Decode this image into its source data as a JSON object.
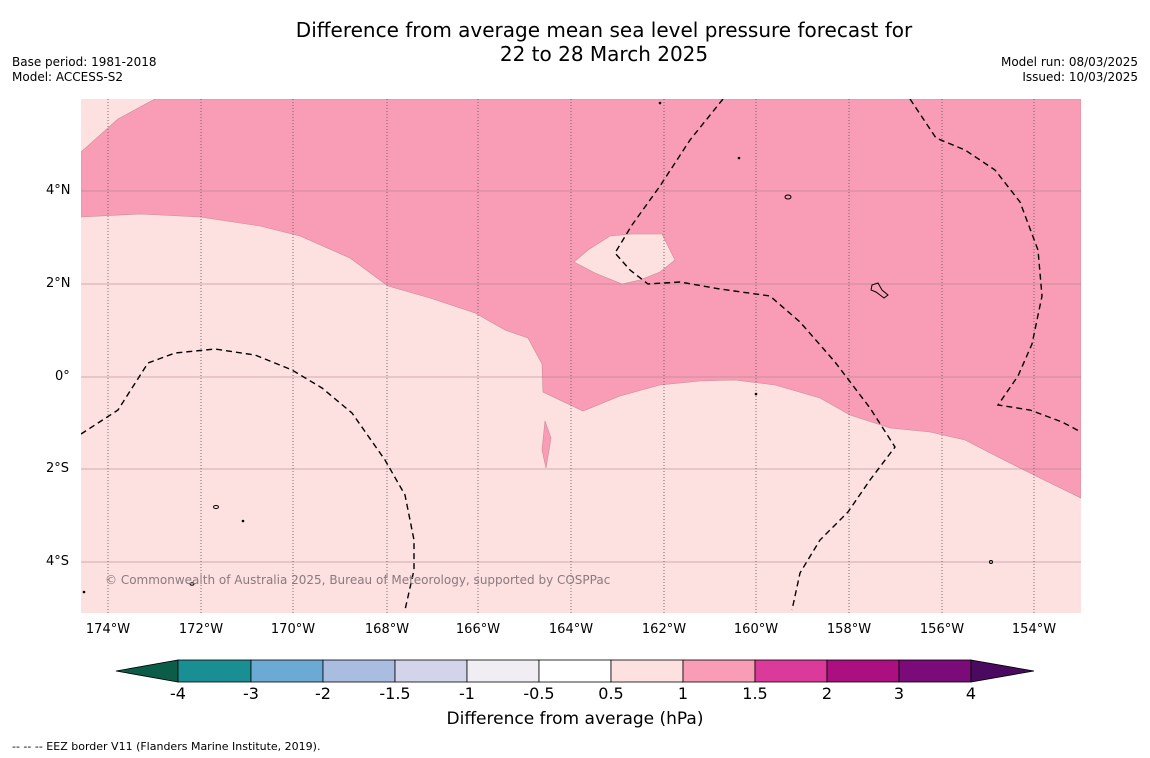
{
  "title_line1": "Difference from average mean sea level pressure forecast for",
  "title_line2": "22 to 28 March 2025",
  "left_meta": [
    "Base period: 1981-2018",
    "Model: ACCESS-S2"
  ],
  "right_meta": [
    "Model run: 08/03/2025",
    "Issued: 10/03/2025"
  ],
  "copyright": "© Commonwealth of Australia 2025, Bureau of Meteorology, supported by COSPPac",
  "lat_labels": [
    "4°N",
    "2°N",
    "0°",
    "2°S",
    "4°S"
  ],
  "lon_labels": [
    "174°W",
    "172°W",
    "170°W",
    "168°W",
    "166°W",
    "164°W",
    "162°W",
    "160°W",
    "158°W",
    "156°W",
    "154°W"
  ],
  "colorbar": {
    "ticks": [
      "-4",
      "-3",
      "-2",
      "-1.5",
      "-1",
      "-0.5",
      "0.5",
      "1",
      "1.5",
      "2",
      "3",
      "4"
    ],
    "colors": {
      "below_min": "#0b5d4a",
      "bins": [
        "#1a8f93",
        "#6aaad4",
        "#a9bde0",
        "#d3d3ea",
        "#f0eef2",
        "#ffffff",
        "#fde0e0",
        "#f99db6",
        "#dc3a9a",
        "#ab0f80",
        "#7a0b78"
      ],
      "above_max": "#4a0a5f"
    },
    "title": "Difference from average (hPa)"
  },
  "map_colors": {
    "light_pink_0.5_to_1": "#fde0e0",
    "pink_1_to_1.5": "#f99db6"
  },
  "footer": "--  --  -- EEZ border V11 (Flanders Marine Institute, 2019)."
}
